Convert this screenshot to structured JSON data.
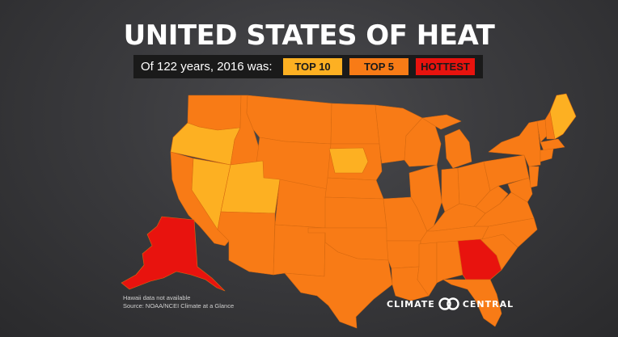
{
  "title": "UNITED STATES OF HEAT",
  "legend": {
    "intro": "Of 122 years, 2016 was:",
    "items": [
      {
        "label": "TOP 10",
        "color": "#fdb022"
      },
      {
        "label": "TOP 5",
        "color": "#f87b16"
      },
      {
        "label": "HOTTEST",
        "color": "#e8130e"
      }
    ]
  },
  "states": {
    "hottest": [
      "Alaska",
      "Georgia"
    ],
    "top5": [
      "Washington",
      "Idaho",
      "Montana",
      "Wyoming",
      "California",
      "Arizona",
      "Colorado",
      "New Mexico",
      "North Dakota",
      "South Dakota",
      "Nebraska",
      "Kansas",
      "Oklahoma",
      "Texas",
      "Minnesota",
      "Missouri",
      "Arkansas",
      "Louisiana",
      "Wisconsin",
      "Illinois",
      "Michigan",
      "Indiana",
      "Ohio",
      "Kentucky",
      "Tennessee",
      "Mississippi",
      "Alabama",
      "Florida",
      "South Carolina",
      "North Carolina",
      "Virginia",
      "West Virginia",
      "Pennsylvania",
      "New York",
      "Vermont",
      "New Hampshire",
      "Massachusetts",
      "Connecticut",
      "Rhode Island",
      "New Jersey",
      "Delaware",
      "Maryland"
    ],
    "top10": [
      "Oregon",
      "Nevada",
      "Utah",
      "Iowa",
      "Maine"
    ]
  },
  "footnote": {
    "line1": "Hawaii data not available",
    "line2": "Source: NOAA/NCEI Climate at a Glance"
  },
  "brand": {
    "left": "CLIMATE",
    "right": "CENTRAL",
    "logo_icon": "climate-central-logo-icon"
  }
}
